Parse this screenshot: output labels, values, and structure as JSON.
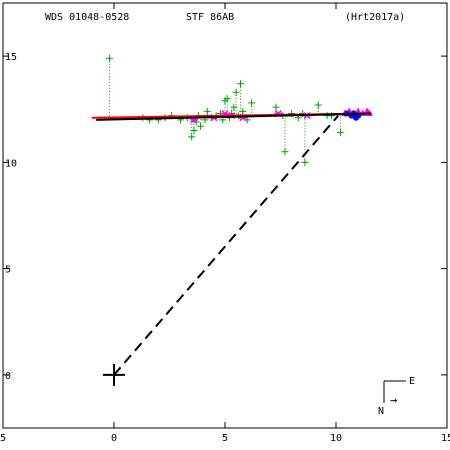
{
  "header": {
    "wds_id": "WDS 01048-0528",
    "discoverer": "STF  86AB",
    "reference": "(Hrt2017a)"
  },
  "compass": {
    "east": "E",
    "north": "N",
    "arrow": "→"
  },
  "colors": {
    "axes": "#000000",
    "micrometric": "#00a000",
    "speckle": "#ff00ff",
    "adaptive_optics": "#0000ff",
    "orbit": "#ff0000",
    "linear_fit": "#000000",
    "interferometric": "#ff00ff"
  },
  "chart_data": {
    "type": "scatter",
    "title": "",
    "xlabel": "",
    "ylabel": "",
    "xlim": [
      -5,
      15
    ],
    "ylim": [
      -2.5,
      17.5
    ],
    "x_ticks": [
      -5,
      0,
      5,
      10,
      15
    ],
    "x_tick_labels": [
      "5",
      "0",
      "5",
      "10",
      "15"
    ],
    "y_ticks": [
      0,
      5,
      10,
      15
    ],
    "y_tick_labels": [
      "0",
      "5",
      "10",
      "15"
    ],
    "grid": false,
    "primary_star": {
      "x": 0,
      "y": 0
    },
    "dashed_line_to": {
      "x": 10.1,
      "y": 12.2
    },
    "series": [
      {
        "marker": "plus",
        "color": "#00a000",
        "points": [
          [
            -0.2,
            14.9
          ],
          [
            1.3,
            12.1
          ],
          [
            1.6,
            12.0
          ],
          [
            2.0,
            12.0
          ],
          [
            2.3,
            12.1
          ],
          [
            2.6,
            12.2
          ],
          [
            3.0,
            12.0
          ],
          [
            3.3,
            12.1
          ],
          [
            3.5,
            11.2
          ],
          [
            3.6,
            11.5
          ],
          [
            3.7,
            11.9
          ],
          [
            3.8,
            12.2
          ],
          [
            3.9,
            11.7
          ],
          [
            4.1,
            12.0
          ],
          [
            4.2,
            12.4
          ],
          [
            4.4,
            12.1
          ],
          [
            4.6,
            12.2
          ],
          [
            4.8,
            12.3
          ],
          [
            4.9,
            12.0
          ],
          [
            5.0,
            12.9
          ],
          [
            5.1,
            13.0
          ],
          [
            5.2,
            12.1
          ],
          [
            5.3,
            12.3
          ],
          [
            5.4,
            12.6
          ],
          [
            5.5,
            13.3
          ],
          [
            5.6,
            12.2
          ],
          [
            5.7,
            13.7
          ],
          [
            5.8,
            12.4
          ],
          [
            6.0,
            12.0
          ],
          [
            6.2,
            12.8
          ],
          [
            7.3,
            12.6
          ],
          [
            7.6,
            12.2
          ],
          [
            8.0,
            12.3
          ],
          [
            8.3,
            12.1
          ],
          [
            8.5,
            12.3
          ],
          [
            7.7,
            10.5
          ],
          [
            8.6,
            10.0
          ],
          [
            9.2,
            12.7
          ],
          [
            9.6,
            12.2
          ],
          [
            9.8,
            12.2
          ],
          [
            10.2,
            11.4
          ],
          [
            10.4,
            12.3
          ]
        ]
      },
      {
        "marker": "star",
        "color": "#ff00ff",
        "points": [
          [
            3.6,
            12.0
          ],
          [
            4.5,
            12.1
          ],
          [
            5.0,
            12.3
          ],
          [
            5.3,
            12.2
          ],
          [
            5.8,
            12.1
          ],
          [
            7.4,
            12.3
          ],
          [
            8.7,
            12.2
          ]
        ]
      },
      {
        "marker": "triangle",
        "color": "#ff00ff",
        "points": [
          [
            10.4,
            12.3
          ],
          [
            10.6,
            12.4
          ],
          [
            10.8,
            12.3
          ],
          [
            11.0,
            12.4
          ],
          [
            11.2,
            12.3
          ],
          [
            11.4,
            12.4
          ],
          [
            11.5,
            12.3
          ]
        ]
      },
      {
        "marker": "dot",
        "color": "#0000ff",
        "points": [
          [
            10.5,
            12.3
          ],
          [
            10.7,
            12.2
          ],
          [
            10.8,
            12.3
          ],
          [
            10.9,
            12.1
          ],
          [
            11.0,
            12.2
          ]
        ]
      },
      {
        "marker": "line",
        "color": "#ff0000",
        "points": [
          [
            -1.0,
            12.1
          ],
          [
            11.6,
            12.3
          ]
        ]
      },
      {
        "marker": "line",
        "color": "#000000",
        "points": [
          [
            -0.8,
            12.0
          ],
          [
            11.6,
            12.3
          ]
        ]
      }
    ]
  }
}
